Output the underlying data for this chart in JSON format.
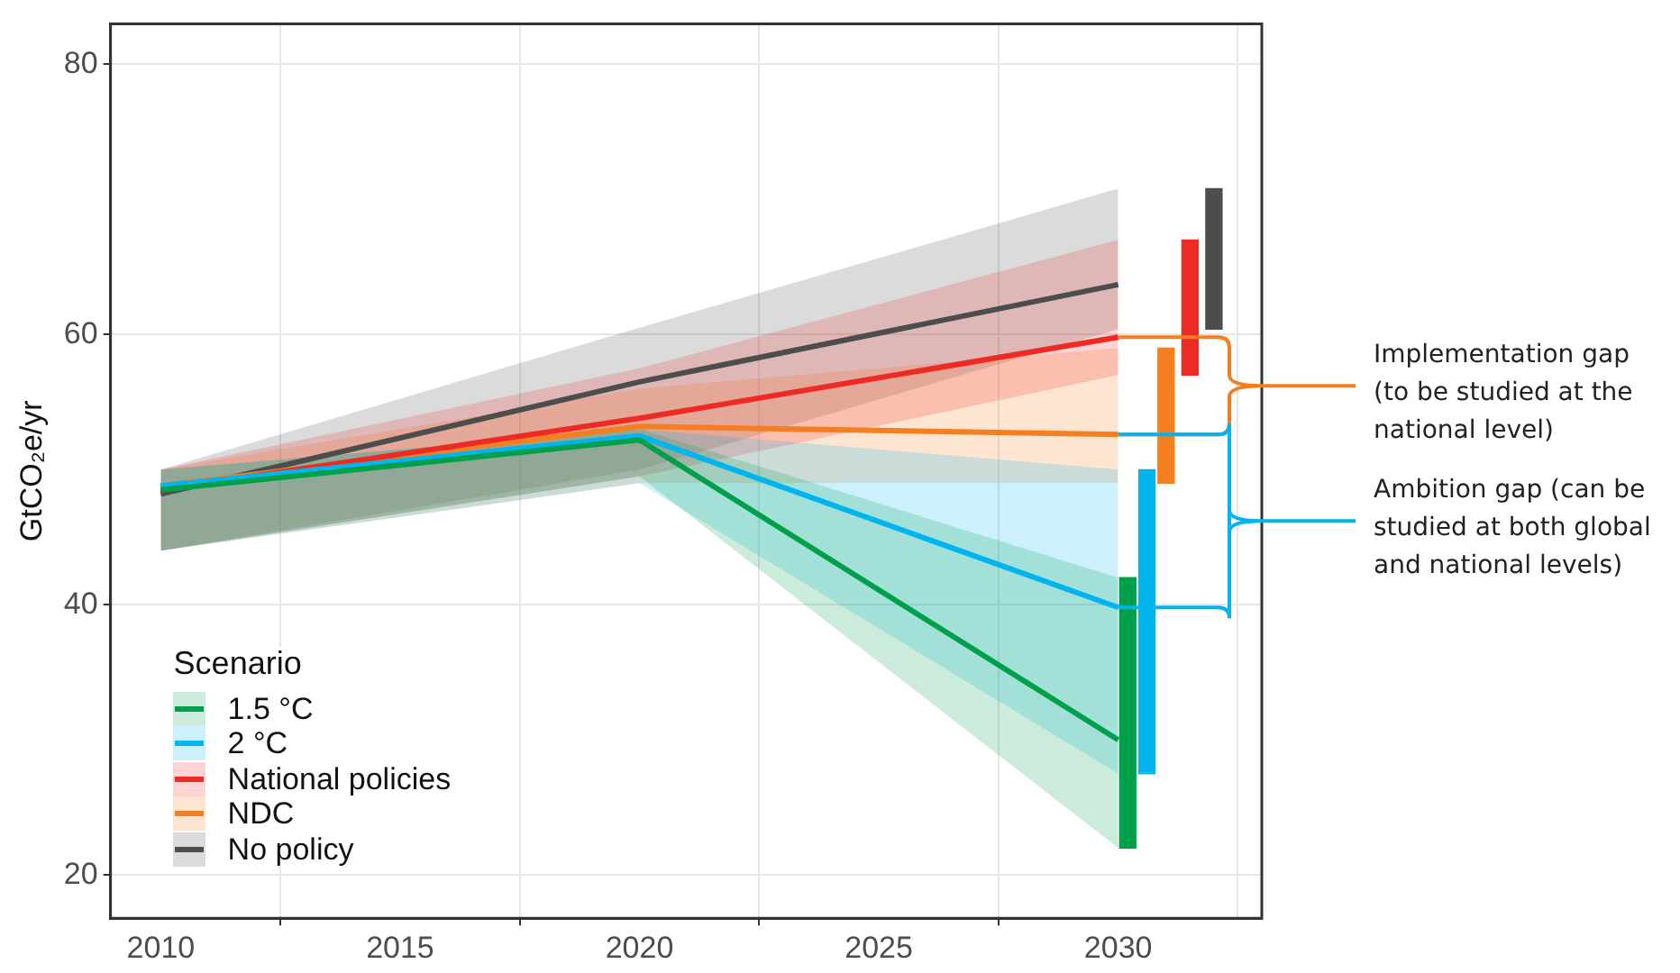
{
  "chart_data": {
    "type": "line",
    "ylabel": "GtCO₂e/yr",
    "legend_title": "Scenario",
    "legend": "bottom left",
    "grid": true,
    "marker": "none",
    "line_style": "solid",
    "xlim": [
      2008.95,
      2033
    ],
    "xticks": [
      2010,
      2015,
      2020,
      2025,
      2030
    ],
    "ylim": [
      16.8,
      83
    ],
    "yticks": [
      20,
      40,
      60,
      80
    ],
    "x": [
      2010,
      2020,
      2030
    ],
    "series": [
      {
        "name": "1.5 °C",
        "color": "#00a04b",
        "values": [
          48.5,
          52.2,
          30
        ],
        "lower": [
          44,
          49.5,
          22
        ],
        "upper": [
          50,
          53,
          42
        ]
      },
      {
        "name": "2 °C",
        "color": "#00b5ef",
        "values": [
          48.8,
          52.5,
          39.8
        ],
        "lower": [
          44,
          49,
          27.5
        ],
        "upper": [
          50,
          53,
          50
        ]
      },
      {
        "name": "National policies",
        "color": "#ee2a24",
        "values": [
          48.5,
          53.8,
          59.8
        ],
        "lower": [
          44,
          49.5,
          57
        ],
        "upper": [
          50,
          57.5,
          67
        ]
      },
      {
        "name": "NDC",
        "color": "#f47f20",
        "values": [
          48.8,
          53.2,
          52.6
        ],
        "lower": [
          44,
          49,
          49
        ],
        "upper": [
          50,
          56,
          59
        ]
      },
      {
        "name": "No policy",
        "color": "#4d4d4d",
        "values": [
          48.2,
          56.5,
          63.7
        ],
        "lower": [
          44,
          50,
          60.4
        ],
        "upper": [
          50,
          60.5,
          70.8
        ]
      },
      {
        "type": "bar",
        "x": [
          2030.2,
          2030.6,
          2031,
          2031.5,
          2032
        ],
        "base": [
          22,
          27.5,
          49,
          57,
          60.4
        ],
        "values": [
          20,
          22.5,
          10,
          10,
          10.4
        ],
        "colors": [
          "#00a04b",
          "#00b5ef",
          "#f47f20",
          "#ee2a24",
          "#4d4d4d"
        ]
      }
    ],
    "annotations": [
      {
        "text": "Implementation gap (to be studied at the national level)",
        "x": 2030,
        "y": 59.8
      },
      {
        "text": "Ambition gap (can be studied at both global and national levels)",
        "x": 2030,
        "y": 39.8
      }
    ]
  }
}
